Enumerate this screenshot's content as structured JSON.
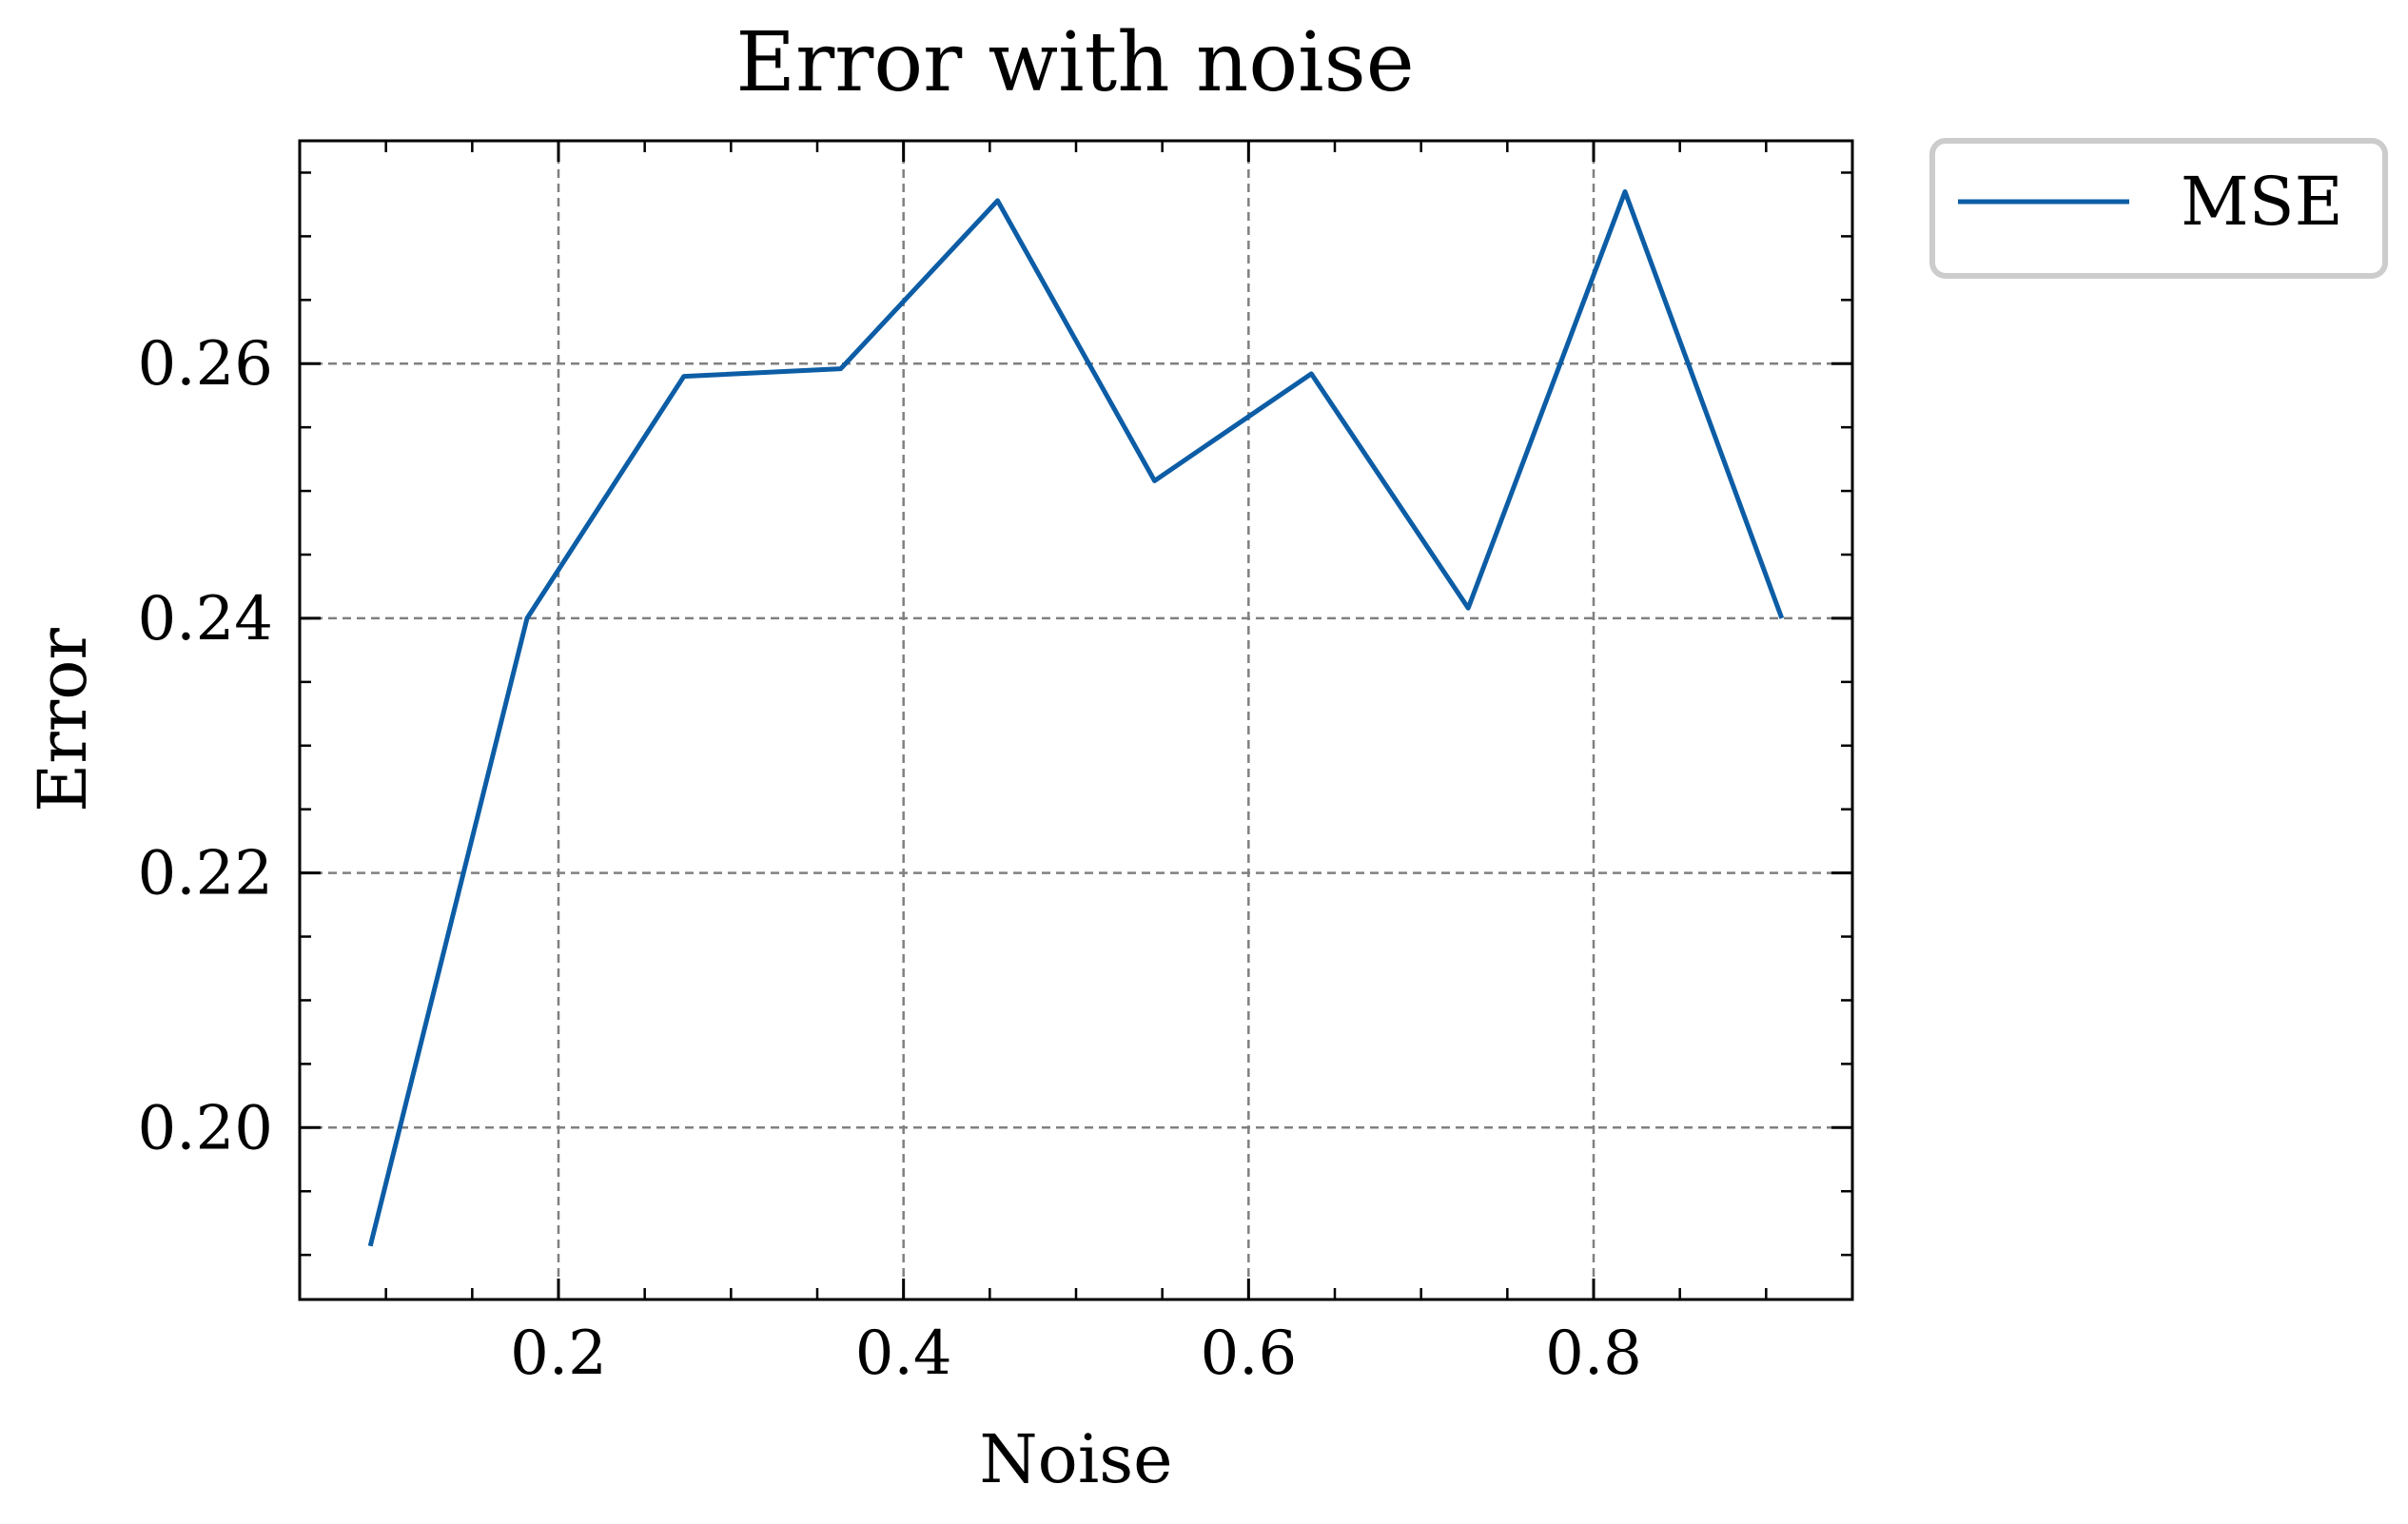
{
  "chart_data": {
    "type": "line",
    "title": "Error with noise",
    "xlabel": "Noise",
    "ylabel": "Error",
    "xlim": [
      0.05,
      0.95
    ],
    "ylim": [
      0.1865,
      0.2775
    ],
    "xticks": [
      0.2,
      0.4,
      0.6,
      0.8
    ],
    "xtick_labels": [
      "0.2",
      "0.4",
      "0.6",
      "0.8"
    ],
    "yticks": [
      0.2,
      0.22,
      0.24,
      0.26
    ],
    "ytick_labels": [
      "0.20",
      "0.22",
      "0.24",
      "0.26"
    ],
    "grid": true,
    "legend_position": "outside-top-right",
    "series": [
      {
        "name": "MSE",
        "color": "#0C5DA5",
        "x": [
          0.0909,
          0.1818,
          0.2727,
          0.3636,
          0.4545,
          0.5455,
          0.6364,
          0.7273,
          0.8182,
          0.9091
        ],
        "y": [
          0.1907,
          0.24,
          0.259,
          0.2596,
          0.2728,
          0.2508,
          0.2592,
          0.2408,
          0.2735,
          0.24
        ]
      }
    ]
  }
}
